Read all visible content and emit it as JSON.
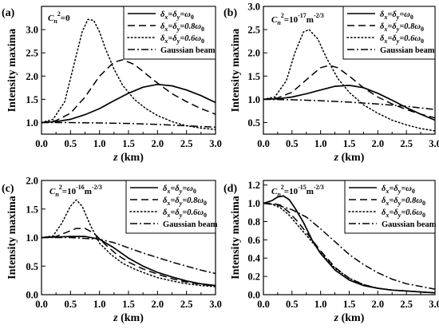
{
  "chart_data": [
    {
      "type": "line",
      "panel_label": "(a)",
      "annotation": "C_n^2=0",
      "xlabel": "z (km)",
      "ylabel": "Intensity maxima",
      "xlim": [
        0.0,
        3.0
      ],
      "ylim": [
        0.75,
        3.5
      ],
      "x_ticks": [
        "0.0",
        "0.5",
        "1.0",
        "1.5",
        "2.0",
        "2.5",
        "3.0"
      ],
      "y_ticks": [
        "1.0",
        "1.5",
        "2.0",
        "2.5",
        "3.0"
      ],
      "legend_position": "top-right",
      "series": [
        {
          "name": "δx=δy=ω0",
          "style": "solid",
          "x": [
            0,
            0.25,
            0.5,
            0.75,
            1.0,
            1.25,
            1.5,
            1.75,
            2.0,
            2.25,
            2.5,
            2.75,
            3.0
          ],
          "y": [
            1.0,
            1.02,
            1.07,
            1.17,
            1.3,
            1.47,
            1.63,
            1.76,
            1.82,
            1.79,
            1.7,
            1.58,
            1.43
          ]
        },
        {
          "name": "δx=δy=0.8ω0",
          "style": "dash",
          "x": [
            0,
            0.25,
            0.5,
            0.75,
            1.0,
            1.25,
            1.4,
            1.6,
            1.8,
            2.0,
            2.25,
            2.5,
            2.75,
            3.0
          ],
          "y": [
            1.0,
            1.04,
            1.2,
            1.55,
            2.0,
            2.3,
            2.35,
            2.25,
            2.05,
            1.85,
            1.62,
            1.45,
            1.3,
            1.18
          ]
        },
        {
          "name": "δx=δy=0.6ω0",
          "style": "dot",
          "x": [
            0,
            0.2,
            0.4,
            0.55,
            0.7,
            0.8,
            0.9,
            1.0,
            1.1,
            1.25,
            1.4,
            1.6,
            1.8,
            2.0,
            2.25,
            2.5,
            2.75,
            3.0
          ],
          "y": [
            1.0,
            1.07,
            1.45,
            2.2,
            2.95,
            3.22,
            3.2,
            2.95,
            2.6,
            2.15,
            1.8,
            1.5,
            1.3,
            1.15,
            1.02,
            0.93,
            0.88,
            0.85
          ]
        },
        {
          "name": "Gaussian beam",
          "style": "dashdot",
          "x": [
            0,
            0.5,
            1.0,
            1.5,
            2.0,
            2.5,
            3.0
          ],
          "y": [
            1.0,
            1.0,
            0.99,
            0.98,
            0.96,
            0.93,
            0.9
          ]
        }
      ]
    },
    {
      "type": "line",
      "panel_label": "(b)",
      "annotation": "C_n^2=10^-17 m^-2/3",
      "xlabel": "z (km)",
      "ylabel": "Intensity maxima",
      "xlim": [
        0.0,
        3.0
      ],
      "ylim": [
        0.25,
        3.0
      ],
      "x_ticks": [
        "0.0",
        "0.5",
        "1.0",
        "1.5",
        "2.0",
        "2.5",
        "3.0"
      ],
      "y_ticks": [
        "0.5",
        "1.0",
        "1.5",
        "2.0",
        "2.5",
        "3.0"
      ],
      "legend_position": "top-right",
      "series": [
        {
          "name": "δx=δy=ω0",
          "style": "solid",
          "x": [
            0,
            0.25,
            0.5,
            0.75,
            1.0,
            1.25,
            1.5,
            1.75,
            2.0,
            2.25,
            2.5,
            2.75,
            3.0
          ],
          "y": [
            1.0,
            1.01,
            1.05,
            1.12,
            1.2,
            1.28,
            1.3,
            1.25,
            1.13,
            0.98,
            0.82,
            0.68,
            0.55
          ]
        },
        {
          "name": "δx=δy=0.8ω0",
          "style": "dash",
          "x": [
            0,
            0.25,
            0.5,
            0.75,
            1.0,
            1.15,
            1.3,
            1.5,
            1.75,
            2.0,
            2.25,
            2.5,
            2.75,
            3.0
          ],
          "y": [
            1.0,
            1.03,
            1.15,
            1.42,
            1.68,
            1.73,
            1.68,
            1.5,
            1.25,
            1.05,
            0.9,
            0.78,
            0.68,
            0.6
          ]
        },
        {
          "name": "δx=δy=0.6ω0",
          "style": "dot",
          "x": [
            0,
            0.2,
            0.4,
            0.55,
            0.7,
            0.8,
            0.95,
            1.1,
            1.3,
            1.5,
            1.75,
            2.0,
            2.25,
            2.5,
            2.75,
            3.0
          ],
          "y": [
            1.0,
            1.05,
            1.4,
            2.0,
            2.45,
            2.5,
            2.3,
            1.9,
            1.45,
            1.15,
            0.88,
            0.7,
            0.55,
            0.45,
            0.37,
            0.32
          ]
        },
        {
          "name": "Gaussian beam",
          "style": "dashdot",
          "x": [
            0,
            0.5,
            1.0,
            1.5,
            2.0,
            2.5,
            3.0
          ],
          "y": [
            1.0,
            0.99,
            0.97,
            0.94,
            0.9,
            0.85,
            0.78
          ]
        }
      ]
    },
    {
      "type": "line",
      "panel_label": "(c)",
      "annotation": "C_n^2=10^-16 m^-2/3",
      "xlabel": "z (km)",
      "ylabel": "Intensity maxima",
      "xlim": [
        0.0,
        3.0
      ],
      "ylim": [
        0.0,
        2.0
      ],
      "x_ticks": [
        "0.0",
        "0.5",
        "1.0",
        "1.5",
        "2.0",
        "2.5",
        "3.0"
      ],
      "y_ticks": [
        "0.0",
        "0.5",
        "1.0",
        "1.5",
        "2.0"
      ],
      "legend_position": "top-right",
      "series": [
        {
          "name": "δx=δy=ω0",
          "style": "solid",
          "x": [
            0,
            0.25,
            0.5,
            0.75,
            1.0,
            1.25,
            1.5,
            1.75,
            2.0,
            2.25,
            2.5,
            2.75,
            3.0
          ],
          "y": [
            1.0,
            1.01,
            1.02,
            1.02,
            0.97,
            0.82,
            0.64,
            0.5,
            0.39,
            0.31,
            0.24,
            0.19,
            0.16
          ]
        },
        {
          "name": "δx=δy=0.8ω0",
          "style": "dash",
          "x": [
            0,
            0.25,
            0.45,
            0.6,
            0.75,
            0.9,
            1.1,
            1.3,
            1.5,
            1.75,
            2.0,
            2.25,
            2.5,
            2.75,
            3.0
          ],
          "y": [
            1.0,
            1.02,
            1.1,
            1.16,
            1.16,
            1.08,
            0.88,
            0.7,
            0.57,
            0.45,
            0.36,
            0.28,
            0.22,
            0.18,
            0.15
          ]
        },
        {
          "name": "δx=δy=0.6ω0",
          "style": "dot",
          "x": [
            0,
            0.2,
            0.35,
            0.5,
            0.6,
            0.7,
            0.85,
            1.0,
            1.2,
            1.4,
            1.6,
            1.8,
            2.0,
            2.25,
            2.5,
            2.75,
            3.0
          ],
          "y": [
            1.0,
            1.03,
            1.25,
            1.55,
            1.66,
            1.55,
            1.2,
            0.9,
            0.7,
            0.55,
            0.45,
            0.37,
            0.3,
            0.24,
            0.19,
            0.16,
            0.14
          ]
        },
        {
          "name": "Gaussian beam",
          "style": "dashdot",
          "x": [
            0,
            0.5,
            1.0,
            1.25,
            1.5,
            1.75,
            2.0,
            2.25,
            2.5,
            2.75,
            3.0
          ],
          "y": [
            1.0,
            1.0,
            0.97,
            0.91,
            0.82,
            0.73,
            0.65,
            0.57,
            0.5,
            0.43,
            0.37
          ]
        }
      ]
    },
    {
      "type": "line",
      "panel_label": "(d)",
      "annotation": "C_n^2=10^-15 m^-2/3",
      "xlabel": "z (km)",
      "ylabel": "Intensity maxima",
      "xlim": [
        0.0,
        3.0
      ],
      "ylim": [
        0.0,
        1.25
      ],
      "x_ticks": [
        "0.0",
        "0.5",
        "1.0",
        "1.5",
        "2.0",
        "2.5",
        "3.0"
      ],
      "y_ticks": [
        "0.0",
        "0.2",
        "0.4",
        "0.6",
        "0.8",
        "1.0",
        "1.2"
      ],
      "legend_position": "top-right",
      "series": [
        {
          "name": "δx=δy=ω0",
          "style": "solid",
          "x": [
            0,
            0.15,
            0.25,
            0.35,
            0.45,
            0.55,
            0.7,
            0.85,
            1.0,
            1.25,
            1.5,
            1.75,
            2.0,
            2.25,
            2.5,
            2.75,
            3.0
          ],
          "y": [
            1.0,
            1.03,
            1.07,
            1.08,
            1.04,
            0.95,
            0.79,
            0.6,
            0.45,
            0.27,
            0.16,
            0.1,
            0.07,
            0.05,
            0.04,
            0.03,
            0.02
          ]
        },
        {
          "name": "δx=δy=0.8ω0",
          "style": "dash",
          "x": [
            0,
            0.15,
            0.3,
            0.45,
            0.6,
            0.75,
            0.9,
            1.0,
            1.25,
            1.5,
            1.75,
            2.0,
            2.25,
            2.5,
            2.75,
            3.0
          ],
          "y": [
            1.0,
            1.0,
            0.98,
            0.9,
            0.8,
            0.68,
            0.56,
            0.48,
            0.3,
            0.18,
            0.11,
            0.07,
            0.05,
            0.04,
            0.03,
            0.02
          ]
        },
        {
          "name": "δx=δy=0.6ω0",
          "style": "dot",
          "x": [
            0,
            0.15,
            0.3,
            0.45,
            0.6,
            0.75,
            0.9,
            1.0,
            1.25,
            1.5,
            1.75,
            2.0,
            2.25,
            2.5,
            2.75,
            3.0
          ],
          "y": [
            1.0,
            0.99,
            0.95,
            0.87,
            0.76,
            0.65,
            0.54,
            0.46,
            0.29,
            0.18,
            0.11,
            0.07,
            0.05,
            0.04,
            0.03,
            0.02
          ]
        },
        {
          "name": "Gaussian beam",
          "style": "dashdot",
          "x": [
            0,
            0.25,
            0.5,
            0.75,
            1.0,
            1.25,
            1.5,
            1.75,
            2.0,
            2.25,
            2.5,
            2.75,
            3.0
          ],
          "y": [
            1.0,
            0.98,
            0.93,
            0.85,
            0.72,
            0.58,
            0.44,
            0.33,
            0.24,
            0.17,
            0.12,
            0.09,
            0.06
          ]
        }
      ]
    }
  ]
}
